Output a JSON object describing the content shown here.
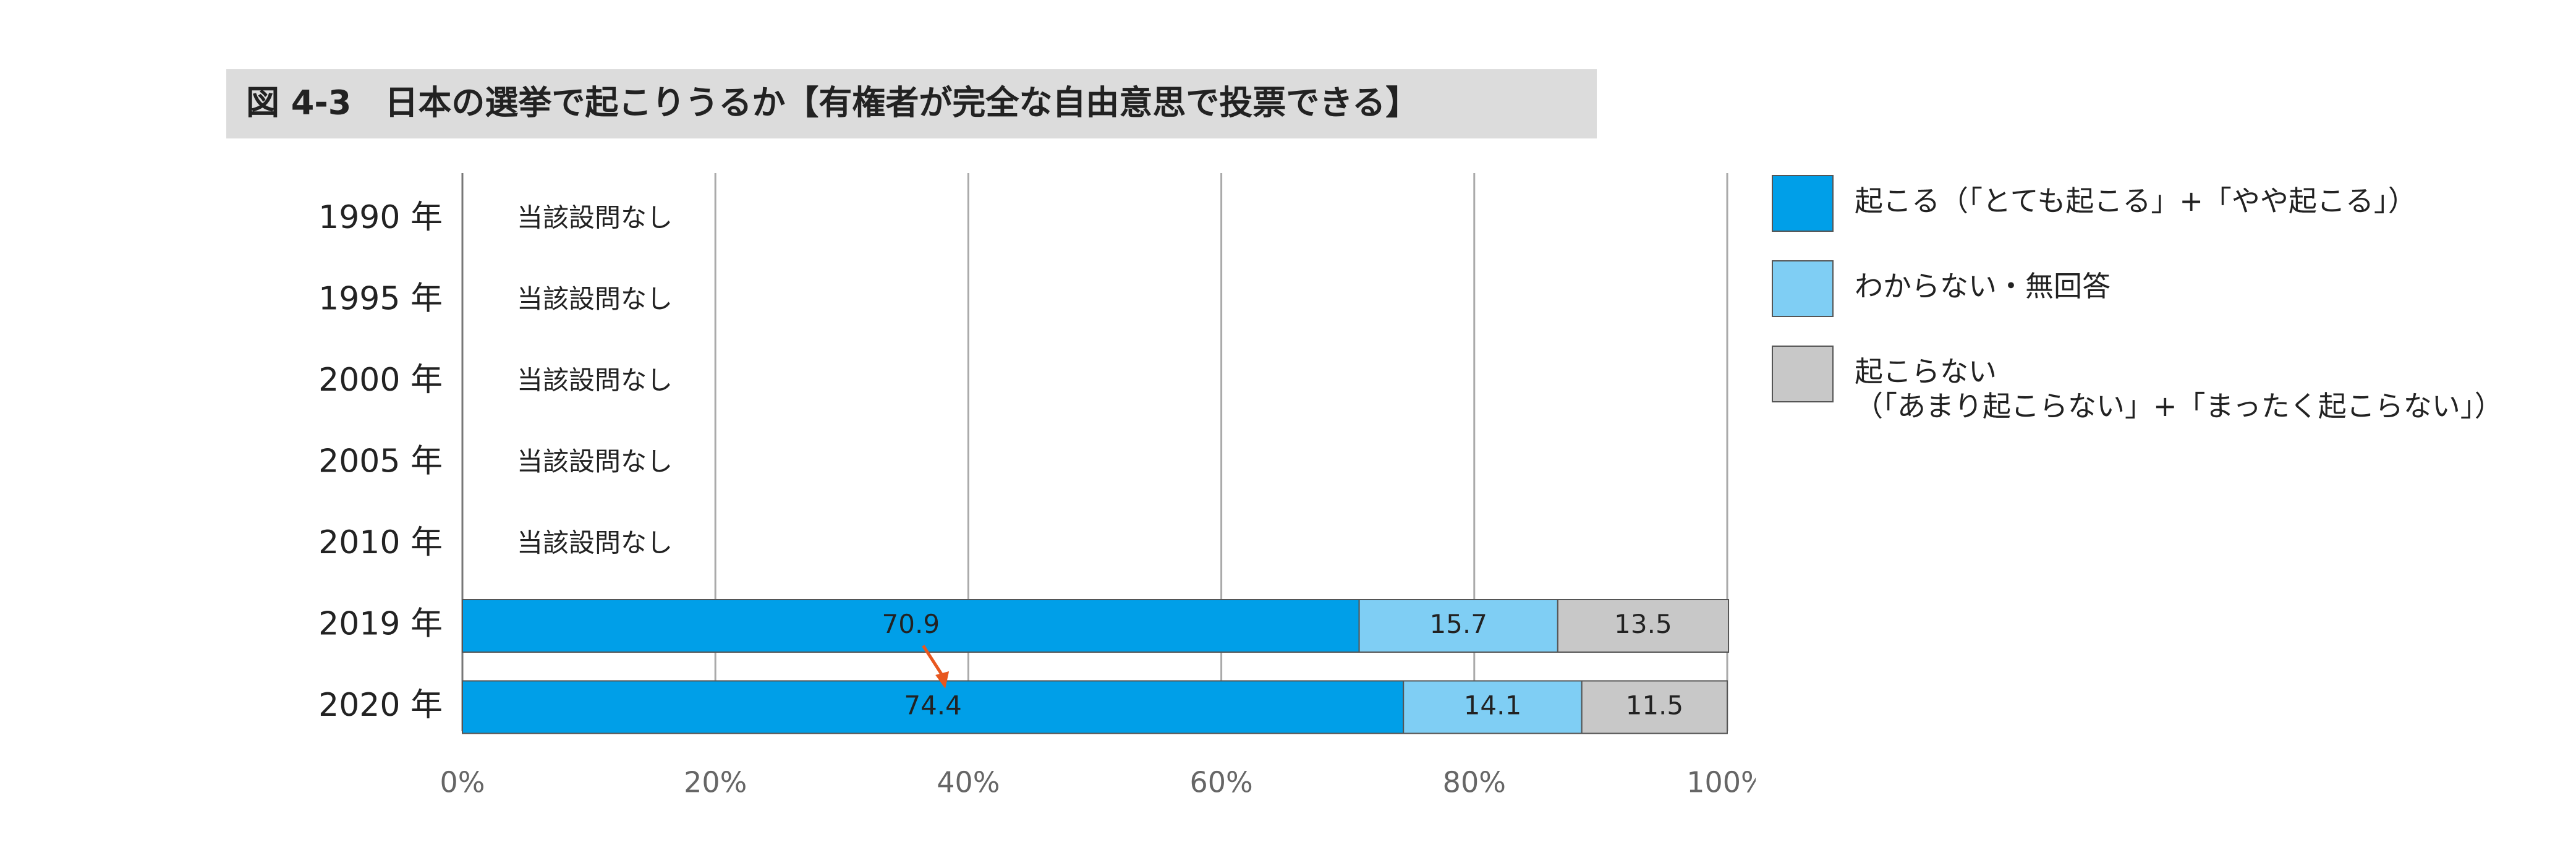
{
  "chart_data": {
    "type": "stacked-bar-horizontal",
    "title": "図 4-3　日本の選挙で起こりうるか【有権者が完全な自由意思で投票できる】",
    "categories": [
      "1990 年",
      "1995 年",
      "2000 年",
      "2005 年",
      "2010 年",
      "2019 年",
      "2020 年"
    ],
    "annotations": [
      "当該設問なし",
      "当該設問なし",
      "当該設問なし",
      "当該設問なし",
      "当該設問なし",
      null,
      null
    ],
    "series": [
      {
        "name": "起こる（「とても起こる」+「やや起こる」）",
        "color": "#009fe8",
        "values": [
          null,
          null,
          null,
          null,
          null,
          70.9,
          74.4
        ]
      },
      {
        "name": "わからない・無回答",
        "color": "#7fcef4",
        "values": [
          null,
          null,
          null,
          null,
          null,
          15.7,
          14.1
        ]
      },
      {
        "name": "起こらない\n（「あまり起こらない」+「まったく起こらない」）",
        "color": "#c8c8c8",
        "values": [
          null,
          null,
          null,
          null,
          null,
          13.5,
          11.5
        ]
      }
    ],
    "xlim": [
      0,
      100
    ],
    "xticks": [
      {
        "value": 0,
        "label": "0%"
      },
      {
        "value": 20,
        "label": "20%"
      },
      {
        "value": 40,
        "label": "40%"
      },
      {
        "value": 60,
        "label": "60%"
      },
      {
        "value": 80,
        "label": "80%"
      },
      {
        "value": 100,
        "label": "100%"
      }
    ],
    "grid": true,
    "legend": "right"
  }
}
